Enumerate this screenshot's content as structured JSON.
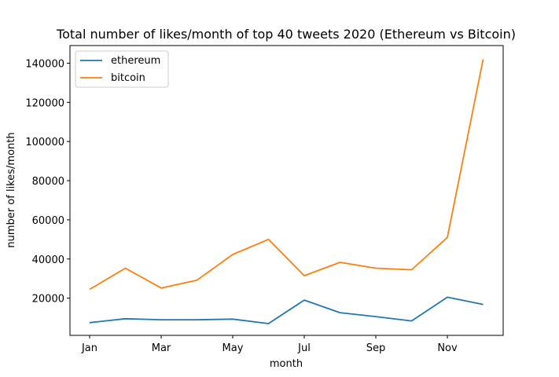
{
  "chart_data": {
    "type": "line",
    "title": "Total number of likes/month  of top 40 tweets 2020 (Ethereum vs Bitcoin)",
    "xlabel": "month",
    "ylabel": "number of likes/month",
    "x": [
      "Jan",
      "Feb",
      "Mar",
      "Apr",
      "May",
      "Jun",
      "Jul",
      "Aug",
      "Sep",
      "Oct",
      "Nov",
      "Dec"
    ],
    "x_tick_labels": [
      "Jan",
      "Mar",
      "May",
      "Jul",
      "Sep",
      "Nov"
    ],
    "y_ticks": [
      20000,
      40000,
      60000,
      80000,
      100000,
      120000,
      140000
    ],
    "y_tick_labels": [
      "20000",
      "40000",
      "60000",
      "80000",
      "100000",
      "120000",
      "140000"
    ],
    "ylim": [
      1000,
      149000
    ],
    "grid": false,
    "legend_position": "top-left",
    "series": [
      {
        "name": "ethereum",
        "color": "#1f77b4",
        "values": [
          7500,
          9500,
          9000,
          9000,
          9300,
          7000,
          19000,
          12600,
          10600,
          8400,
          20500,
          16800
        ]
      },
      {
        "name": "bitcoin",
        "color": "#ff7f0e",
        "values": [
          24500,
          35300,
          25200,
          29200,
          42300,
          50000,
          31500,
          38300,
          35300,
          34500,
          51000,
          142000
        ]
      }
    ]
  }
}
